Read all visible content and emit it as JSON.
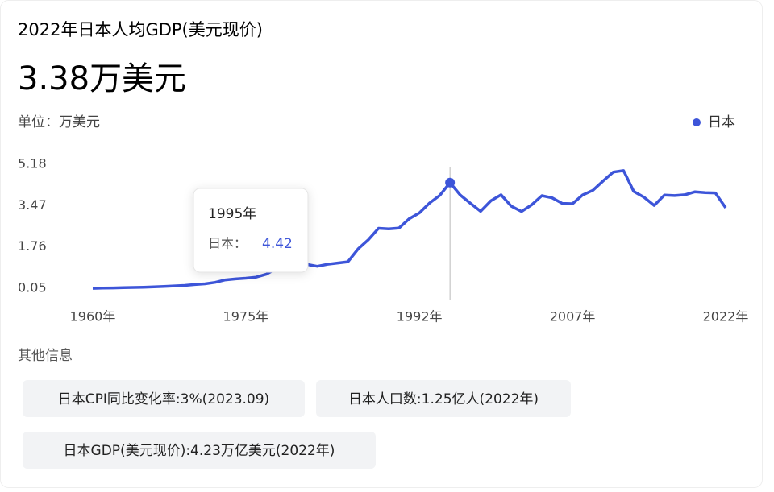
{
  "header": {
    "title": "2022年日本人均GDP(美元现价)",
    "headline": "3.38万美元",
    "unit": "单位：万美元"
  },
  "chart_data": {
    "type": "line",
    "x": [
      1960,
      1961,
      1962,
      1963,
      1964,
      1965,
      1966,
      1967,
      1968,
      1969,
      1970,
      1971,
      1972,
      1973,
      1974,
      1975,
      1976,
      1977,
      1978,
      1979,
      1980,
      1981,
      1982,
      1983,
      1984,
      1985,
      1986,
      1987,
      1988,
      1989,
      1990,
      1991,
      1992,
      1993,
      1994,
      1995,
      1996,
      1997,
      1998,
      1999,
      2000,
      2001,
      2002,
      2003,
      2004,
      2005,
      2006,
      2007,
      2008,
      2009,
      2010,
      2011,
      2012,
      2013,
      2014,
      2015,
      2016,
      2017,
      2018,
      2019,
      2020,
      2021,
      2022
    ],
    "series": [
      {
        "name": "日本",
        "color": "#3d55d9",
        "values": [
          0.048,
          0.056,
          0.063,
          0.072,
          0.084,
          0.092,
          0.106,
          0.123,
          0.145,
          0.167,
          0.204,
          0.232,
          0.293,
          0.398,
          0.435,
          0.467,
          0.511,
          0.629,
          0.868,
          0.91,
          0.946,
          1.036,
          0.958,
          1.043,
          1.097,
          1.147,
          1.68,
          2.06,
          2.532,
          2.507,
          2.538,
          2.925,
          3.168,
          3.578,
          3.893,
          4.421,
          3.91,
          3.563,
          3.235,
          3.668,
          3.917,
          3.448,
          3.229,
          3.501,
          3.882,
          3.79,
          3.56,
          3.548,
          3.911,
          4.103,
          4.491,
          4.858,
          4.918,
          4.058,
          3.816,
          3.477,
          3.905,
          3.883,
          3.916,
          4.042,
          4.004,
          3.993,
          3.382
        ]
      }
    ],
    "xlim": [
      1960,
      2022
    ],
    "xticks": [
      {
        "value": 1960,
        "label": "1960年"
      },
      {
        "value": 1975,
        "label": "1975年"
      },
      {
        "value": 1992,
        "label": "1992年"
      },
      {
        "value": 2007,
        "label": "2007年"
      },
      {
        "value": 2022,
        "label": "2022年"
      }
    ],
    "ylim": [
      0.05,
      5.18
    ],
    "yticks": [
      0.05,
      1.76,
      3.47,
      5.18
    ],
    "legend": "top-right",
    "tooltip": {
      "title": "1995年",
      "series": "日本：",
      "value": 4.42,
      "x": 1995
    }
  },
  "other_info": {
    "title": "其他信息",
    "chips": [
      "日本CPI同比变化率:3%(2023.09)",
      "日本人口数:1.25亿人(2022年)",
      "日本GDP(美元现价):4.23万亿美元(2022年)"
    ]
  }
}
